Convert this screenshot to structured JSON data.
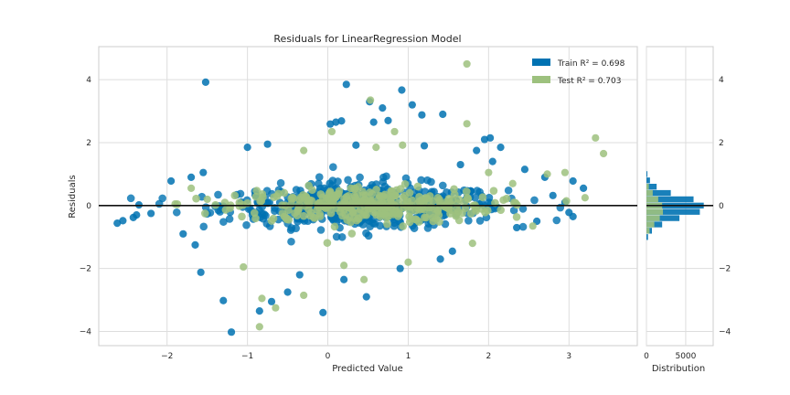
{
  "chart_data": {
    "type": "scatter",
    "title": "Residuals for LinearRegression Model",
    "xlabel": "Predicted Value",
    "ylabel": "Residuals",
    "xlim": [
      -2.85,
      3.85
    ],
    "ylim": [
      -4.45,
      5.05
    ],
    "xticks": [
      "−2",
      "−1",
      "0",
      "1",
      "2",
      "3"
    ],
    "xtick_values": [
      -2,
      -1,
      0,
      1,
      2,
      3
    ],
    "yticks": [
      "−4",
      "−2",
      "0",
      "2",
      "4"
    ],
    "ytick_values": [
      -4,
      -2,
      0,
      2,
      4
    ],
    "grid": true,
    "legend_position": "top-right",
    "zero_line": 0,
    "series": [
      {
        "name": "Train",
        "legend_label": "Train R² = 0.698",
        "r2": 0.698,
        "color": "#0072B2",
        "cloud": {
          "x_center": 0.45,
          "x_spread": 1.6,
          "y_spread": 0.4,
          "count": 520
        },
        "points": [
          [
            -1.52,
            3.92
          ],
          [
            -1.2,
            -4.02
          ],
          [
            0.23,
            3.85
          ],
          [
            0.92,
            3.67
          ],
          [
            0.52,
            3.3
          ],
          [
            0.68,
            3.1
          ],
          [
            0.17,
            2.69
          ],
          [
            0.1,
            2.65
          ],
          [
            0.03,
            2.59
          ],
          [
            1.05,
            3.2
          ],
          [
            1.17,
            2.88
          ],
          [
            1.43,
            2.9
          ],
          [
            0.57,
            2.65
          ],
          [
            0.75,
            2.7
          ],
          [
            2.02,
            2.15
          ],
          [
            1.95,
            2.1
          ],
          [
            2.15,
            1.85
          ],
          [
            1.85,
            1.75
          ],
          [
            -2.62,
            -0.56
          ],
          [
            -2.55,
            -0.48
          ],
          [
            -2.42,
            -0.38
          ],
          [
            -2.38,
            -0.3
          ],
          [
            -2.35,
            0.02
          ],
          [
            -2.2,
            -0.25
          ],
          [
            -1.95,
            0.78
          ],
          [
            -1.55,
            1.05
          ],
          [
            -1.3,
            -3.02
          ],
          [
            -1.58,
            -2.12
          ],
          [
            -0.85,
            -3.35
          ],
          [
            -0.7,
            -3.05
          ],
          [
            -0.5,
            -2.75
          ],
          [
            -0.06,
            -3.4
          ],
          [
            0.48,
            -2.9
          ],
          [
            -1.0,
            1.85
          ],
          [
            -0.75,
            1.95
          ],
          [
            0.35,
            1.92
          ],
          [
            2.45,
            1.15
          ],
          [
            2.7,
            0.9
          ],
          [
            3.05,
            0.78
          ],
          [
            3.18,
            0.55
          ],
          [
            2.8,
            0.32
          ],
          [
            2.95,
            0.1
          ],
          [
            3.0,
            -0.22
          ],
          [
            3.05,
            -0.35
          ],
          [
            2.6,
            -0.5
          ],
          [
            2.35,
            -0.7
          ],
          [
            1.55,
            -1.45
          ],
          [
            1.4,
            -1.7
          ],
          [
            2.05,
            1.4
          ],
          [
            -1.8,
            -0.9
          ],
          [
            -1.65,
            -1.25
          ],
          [
            -1.7,
            0.9
          ],
          [
            0.9,
            -2.0
          ],
          [
            0.2,
            -2.35
          ],
          [
            -0.35,
            -2.2
          ],
          [
            1.2,
            1.9
          ],
          [
            1.65,
            1.3
          ]
        ]
      },
      {
        "name": "Test",
        "legend_label": "Test R² = 0.703",
        "r2": 0.703,
        "color": "#9DC17E",
        "cloud": {
          "x_center": 0.45,
          "x_spread": 1.45,
          "y_spread": 0.32,
          "count": 340
        },
        "points": [
          [
            1.73,
            4.5
          ],
          [
            1.73,
            2.6
          ],
          [
            0.05,
            2.35
          ],
          [
            0.83,
            2.35
          ],
          [
            0.93,
            1.92
          ],
          [
            0.53,
            3.35
          ],
          [
            3.33,
            2.15
          ],
          [
            3.43,
            1.65
          ],
          [
            2.73,
            1.0
          ],
          [
            2.95,
            1.05
          ],
          [
            -0.85,
            -3.85
          ],
          [
            -0.65,
            -3.25
          ],
          [
            -0.3,
            -2.85
          ],
          [
            -0.82,
            -2.95
          ],
          [
            0.2,
            -1.9
          ],
          [
            0.45,
            -2.35
          ],
          [
            -1.7,
            0.55
          ],
          [
            -1.5,
            0.2
          ],
          [
            -1.9,
            0.05
          ],
          [
            2.55,
            -0.65
          ],
          [
            2.3,
            0.7
          ],
          [
            1.8,
            -1.2
          ],
          [
            0.6,
            1.85
          ],
          [
            -0.3,
            1.75
          ],
          [
            1.0,
            -1.8
          ],
          [
            -1.05,
            -1.95
          ],
          [
            2.0,
            1.05
          ],
          [
            3.2,
            0.25
          ]
        ]
      }
    ],
    "histogram": {
      "xlabel": "Distribution",
      "xlim": [
        0,
        8500
      ],
      "xticks": [
        "0",
        "5000"
      ],
      "xtick_values": [
        0,
        5000
      ],
      "yticks": [
        "−4",
        "−2",
        "0",
        "2",
        "4"
      ],
      "train_bins": [
        {
          "y": -1.0,
          "count": 200
        },
        {
          "y": -0.8,
          "count": 700
        },
        {
          "y": -0.6,
          "count": 2000
        },
        {
          "y": -0.4,
          "count": 4200
        },
        {
          "y": -0.2,
          "count": 6800
        },
        {
          "y": 0.0,
          "count": 7300
        },
        {
          "y": 0.2,
          "count": 6000
        },
        {
          "y": 0.4,
          "count": 3100
        },
        {
          "y": 0.6,
          "count": 1300
        },
        {
          "y": 0.8,
          "count": 450
        },
        {
          "y": 1.0,
          "count": 120
        }
      ],
      "test_bins": [
        {
          "y": -0.8,
          "count": 400
        },
        {
          "y": -0.6,
          "count": 1000
        },
        {
          "y": -0.4,
          "count": 1700
        },
        {
          "y": -0.2,
          "count": 2100
        },
        {
          "y": 0.0,
          "count": 2000
        },
        {
          "y": 0.2,
          "count": 1500
        },
        {
          "y": 0.4,
          "count": 800
        },
        {
          "y": 0.6,
          "count": 300
        }
      ]
    }
  }
}
